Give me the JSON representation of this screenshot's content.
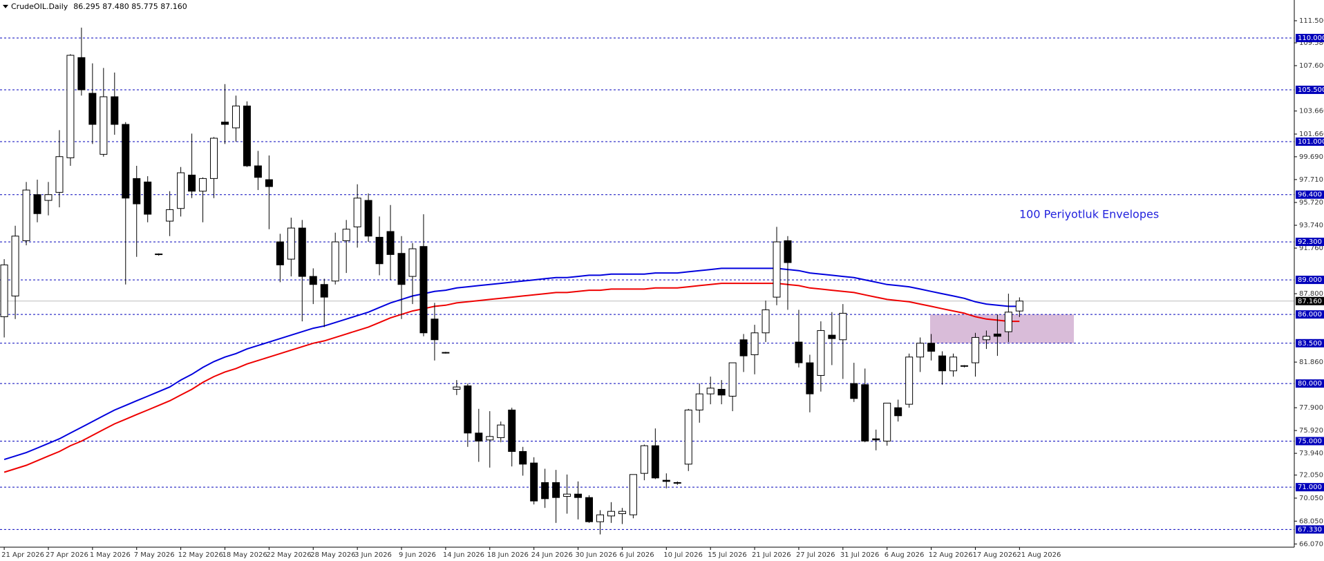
{
  "chart_data": {
    "type": "candlestick",
    "title": "CrudeOIL.Daily",
    "ohlc_text": "86.295 87.480 85.775 87.160",
    "annotation": "100 Periyotluk Envelopes",
    "categories": [
      "21 Apr 2026",
      null,
      null,
      null,
      "27 Apr 2026",
      null,
      null,
      null,
      "1 May 2026",
      null,
      null,
      null,
      "7 May 2026",
      null,
      null,
      null,
      "12 May 2026",
      null,
      null,
      null,
      "18 May 2026",
      null,
      null,
      null,
      "22 May 2026",
      null,
      null,
      null,
      "28 May 2026",
      null,
      null,
      null,
      "3 Jun 2026",
      null,
      null,
      null,
      "9 Jun 2026",
      null,
      null,
      null,
      "14 Jun 2026",
      null,
      null,
      null,
      "18 Jun 2026",
      null,
      null,
      null,
      "24 Jun 2026",
      null,
      null,
      null,
      "30 Jun 2026",
      null,
      null,
      null,
      "6 Jul 2026",
      null,
      null,
      null,
      "10 Jul 2026",
      null,
      null,
      null,
      "15 Jul 2026",
      null,
      null,
      null,
      "21 Jul 2026",
      null,
      null,
      null,
      "27 Jul 2026",
      null,
      null,
      null,
      "31 Jul 2026",
      null,
      null,
      null,
      "6 Aug 2026",
      null,
      null,
      null,
      "12 Aug 2026",
      null,
      null,
      null,
      "17 Aug 2026",
      null,
      null,
      null,
      "21 Aug 2026"
    ],
    "open": [
      85.8,
      87.6,
      92.4,
      96.4,
      95.9,
      96.6,
      99.6,
      108.3,
      105.2,
      99.9,
      104.9,
      102.5,
      97.8,
      97.5,
      91.2,
      94.1,
      95.2,
      98.1,
      96.7,
      97.8,
      102.7,
      102.2,
      104.1,
      98.9,
      97.7,
      92.3,
      90.8,
      93.5,
      89.3,
      88.6,
      88.9,
      92.4,
      93.6,
      95.9,
      92.7,
      93.2,
      91.3,
      89.3,
      91.9,
      85.6,
      82.7,
      79.5,
      79.8,
      75.7,
      75.1,
      75.3,
      77.7,
      74.1,
      73.1,
      71.4,
      71.4,
      70.2,
      70.4,
      70.1,
      68.0,
      68.5,
      68.7,
      68.6,
      72.2,
      74.6,
      71.6,
      71.4,
      73.0,
      77.7,
      79.1,
      79.5,
      78.9,
      83.8,
      82.5,
      84.4,
      87.5,
      92.4,
      83.6,
      81.8,
      80.7,
      84.2,
      83.8,
      80.0,
      79.9,
      75.2,
      75.0,
      77.9,
      78.2,
      82.3,
      83.5,
      82.4,
      81.1,
      81.5,
      81.8,
      83.8,
      84.3,
      84.5,
      86.295
    ],
    "high": [
      90.8,
      93.7,
      97.5,
      97.7,
      97.5,
      102.0,
      108.6,
      110.9,
      107.8,
      107.4,
      107.0,
      102.7,
      98.9,
      98.0,
      91.3,
      96.7,
      98.8,
      101.7,
      97.9,
      101.4,
      106.0,
      105.0,
      104.5,
      100.2,
      99.8,
      93.0,
      94.4,
      94.2,
      90.0,
      89.1,
      93.1,
      94.2,
      97.3,
      96.5,
      94.5,
      95.5,
      92.8,
      92.2,
      94.7,
      87.0,
      82.75,
      80.3,
      80.0,
      77.8,
      77.6,
      76.7,
      77.9,
      74.5,
      73.6,
      72.6,
      72.5,
      72.1,
      71.5,
      70.3,
      69.0,
      69.7,
      69.2,
      72.1,
      74.7,
      76.1,
      72.2,
      71.5,
      77.8,
      80.0,
      80.6,
      80.3,
      81.8,
      84.3,
      85.1,
      87.2,
      93.6,
      92.8,
      86.4,
      82.5,
      85.4,
      86.2,
      86.9,
      81.8,
      81.3,
      76.0,
      78.3,
      78.6,
      82.6,
      84.0,
      84.3,
      82.8,
      82.6,
      81.6,
      84.4,
      84.6,
      86.0,
      87.8,
      87.48
    ],
    "low": [
      84.0,
      85.6,
      92.0,
      94.0,
      94.6,
      95.3,
      98.9,
      105.0,
      100.8,
      99.7,
      101.6,
      88.6,
      91.0,
      94.0,
      91.1,
      92.8,
      94.5,
      96.1,
      94.0,
      96.1,
      100.8,
      101.0,
      98.8,
      96.8,
      93.4,
      88.8,
      89.3,
      85.4,
      86.9,
      84.9,
      88.6,
      89.6,
      91.8,
      92.3,
      89.4,
      89.0,
      85.6,
      86.9,
      84.1,
      82.0,
      82.6,
      79.0,
      74.5,
      73.2,
      72.7,
      74.9,
      72.8,
      72.0,
      69.5,
      69.2,
      67.9,
      68.7,
      68.2,
      67.9,
      66.9,
      67.9,
      67.8,
      68.3,
      71.6,
      71.7,
      70.9,
      71.2,
      72.4,
      76.6,
      78.2,
      78.2,
      77.6,
      81.0,
      80.8,
      83.6,
      86.8,
      86.4,
      81.4,
      77.5,
      79.3,
      81.6,
      80.4,
      78.4,
      74.9,
      74.2,
      74.6,
      76.7,
      77.9,
      81.0,
      82.0,
      79.9,
      80.6,
      81.4,
      80.6,
      83.0,
      82.4,
      83.6,
      85.775
    ],
    "close": [
      90.3,
      92.8,
      96.8,
      94.75,
      96.4,
      99.7,
      108.5,
      105.5,
      102.5,
      104.9,
      102.5,
      96.1,
      95.6,
      94.7,
      91.25,
      95.1,
      98.3,
      96.7,
      97.8,
      101.3,
      102.5,
      104.1,
      98.9,
      97.9,
      97.1,
      90.3,
      93.5,
      89.3,
      88.6,
      87.5,
      92.3,
      93.4,
      96.1,
      92.8,
      90.4,
      91.2,
      88.6,
      91.7,
      84.4,
      83.8,
      82.65,
      79.7,
      75.7,
      75.0,
      75.4,
      76.4,
      74.1,
      73.0,
      69.8,
      70.0,
      70.1,
      70.4,
      70.1,
      68.0,
      68.6,
      68.9,
      68.9,
      72.1,
      74.6,
      71.8,
      71.5,
      71.35,
      77.7,
      79.1,
      79.6,
      79.0,
      81.8,
      82.4,
      84.4,
      86.4,
      92.3,
      90.5,
      81.8,
      79.1,
      84.6,
      83.9,
      86.1,
      78.7,
      75.0,
      75.1,
      78.3,
      77.2,
      82.3,
      83.5,
      82.8,
      81.1,
      82.3,
      81.55,
      84.0,
      84.1,
      84.1,
      86.2,
      87.16
    ],
    "up_color": "#ffffff",
    "down_color": "#000000",
    "envelopes": {
      "upper": {
        "color": "#0000dd",
        "values": [
          73.4,
          73.7,
          74.0,
          74.4,
          74.8,
          75.2,
          75.7,
          76.2,
          76.7,
          77.2,
          77.7,
          78.1,
          78.5,
          78.9,
          79.3,
          79.7,
          80.3,
          80.8,
          81.4,
          81.9,
          82.3,
          82.6,
          83.0,
          83.3,
          83.6,
          83.9,
          84.2,
          84.5,
          84.8,
          85.0,
          85.3,
          85.6,
          85.9,
          86.2,
          86.6,
          87.0,
          87.3,
          87.6,
          87.8,
          88.0,
          88.1,
          88.3,
          88.4,
          88.5,
          88.6,
          88.7,
          88.8,
          88.9,
          89.0,
          89.1,
          89.2,
          89.2,
          89.3,
          89.4,
          89.4,
          89.5,
          89.5,
          89.5,
          89.5,
          89.6,
          89.6,
          89.6,
          89.7,
          89.8,
          89.9,
          90.0,
          90.0,
          90.0,
          90.0,
          90.0,
          90.0,
          89.9,
          89.8,
          89.6,
          89.5,
          89.4,
          89.3,
          89.2,
          89.0,
          88.8,
          88.6,
          88.5,
          88.4,
          88.2,
          88.0,
          87.8,
          87.6,
          87.4,
          87.1,
          86.9,
          86.8,
          86.7,
          86.7
        ]
      },
      "lower": {
        "color": "#ee0000",
        "values": [
          72.3,
          72.6,
          72.9,
          73.3,
          73.7,
          74.1,
          74.6,
          75.0,
          75.5,
          76.0,
          76.5,
          76.9,
          77.3,
          77.7,
          78.1,
          78.5,
          79.0,
          79.5,
          80.1,
          80.6,
          81.0,
          81.3,
          81.7,
          82.0,
          82.3,
          82.6,
          82.9,
          83.2,
          83.5,
          83.7,
          84.0,
          84.3,
          84.6,
          84.9,
          85.3,
          85.7,
          86.0,
          86.3,
          86.5,
          86.7,
          86.8,
          87.0,
          87.1,
          87.2,
          87.3,
          87.4,
          87.5,
          87.6,
          87.7,
          87.8,
          87.9,
          87.9,
          88.0,
          88.1,
          88.1,
          88.2,
          88.2,
          88.2,
          88.2,
          88.3,
          88.3,
          88.3,
          88.4,
          88.5,
          88.6,
          88.7,
          88.7,
          88.7,
          88.7,
          88.7,
          88.7,
          88.6,
          88.5,
          88.3,
          88.2,
          88.1,
          88.0,
          87.9,
          87.7,
          87.5,
          87.3,
          87.2,
          87.1,
          86.9,
          86.7,
          86.5,
          86.3,
          86.1,
          85.8,
          85.6,
          85.5,
          85.4,
          85.4
        ]
      }
    },
    "zone": {
      "y": [
        83.5,
        86.0
      ],
      "color": "#d9bcd9"
    },
    "levels": [
      {
        "value": 110,
        "label": "110.000"
      },
      {
        "value": 105.5,
        "label": "105.500"
      },
      {
        "value": 101,
        "label": "101.000"
      },
      {
        "value": 96.4,
        "label": "96.400"
      },
      {
        "value": 92.3,
        "label": "92.300"
      },
      {
        "value": 89,
        "label": "89.000"
      },
      {
        "value": 86,
        "label": "86.000"
      },
      {
        "value": 83.5,
        "label": "83.500"
      },
      {
        "value": 80,
        "label": "80.000"
      },
      {
        "value": 75,
        "label": "75.000"
      },
      {
        "value": 71,
        "label": "71.000"
      },
      {
        "value": 67.33,
        "label": "67.330"
      }
    ],
    "level_color": "#0000bb",
    "last_price": {
      "value": 87.16,
      "label": "87.160"
    },
    "ylim": [
      65.79,
      113.3
    ],
    "yticks": [
      {
        "value": 111.5,
        "label": "111.500"
      },
      {
        "value": 109.58,
        "label": "109.580"
      },
      {
        "value": 107.6,
        "label": "107.600"
      },
      {
        "value": 103.66,
        "label": "103.660"
      },
      {
        "value": 101.66,
        "label": "101.660"
      },
      {
        "value": 99.69,
        "label": "99.690"
      },
      {
        "value": 97.71,
        "label": "97.710"
      },
      {
        "value": 95.72,
        "label": "95.720"
      },
      {
        "value": 93.74,
        "label": "93.740"
      },
      {
        "value": 91.76,
        "label": "91.760"
      },
      {
        "value": 87.8,
        "label": "87.800"
      },
      {
        "value": 81.86,
        "label": "81.860"
      },
      {
        "value": 77.9,
        "label": "77.900"
      },
      {
        "value": 75.92,
        "label": "75.920"
      },
      {
        "value": 73.94,
        "label": "73.940"
      },
      {
        "value": 72.05,
        "label": "72.050"
      },
      {
        "value": 70.05,
        "label": "70.050"
      },
      {
        "value": 68.05,
        "label": "68.050"
      },
      {
        "value": 66.07,
        "label": "66.070"
      }
    ]
  }
}
